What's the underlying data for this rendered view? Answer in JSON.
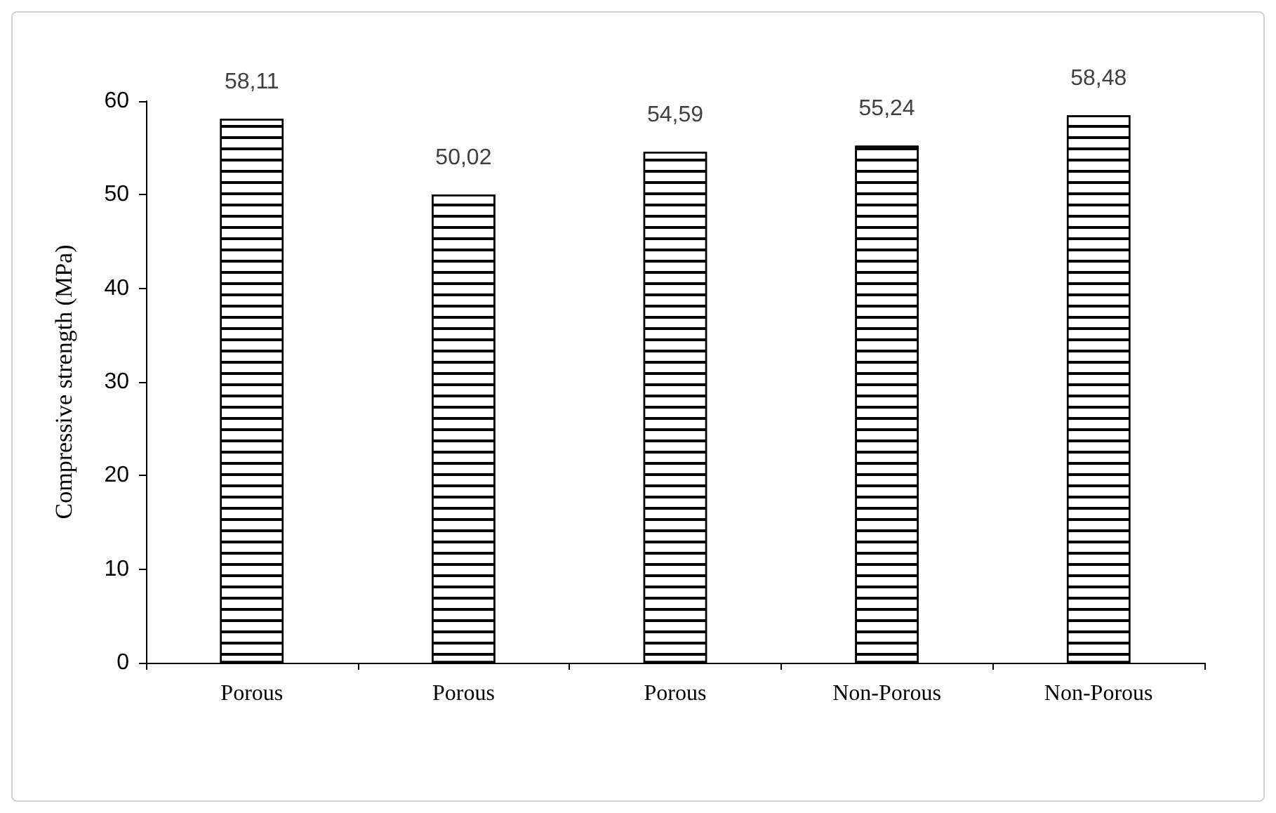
{
  "chart_data": {
    "type": "bar",
    "ylabel": "Compressive strength (MPa)",
    "categories": [
      "Porous",
      "Porous",
      "Porous",
      "Non-Porous",
      "Non-Porous"
    ],
    "values": [
      58.11,
      50.02,
      54.59,
      55.24,
      58.48
    ],
    "value_labels": [
      "58,11",
      "50,02",
      "54,59",
      "55,24",
      "58,48"
    ],
    "color": "#ffffff",
    "ylim": [
      0,
      60
    ],
    "yticks": [
      0,
      10,
      20,
      30,
      40,
      50,
      60
    ],
    "grid": false
  }
}
